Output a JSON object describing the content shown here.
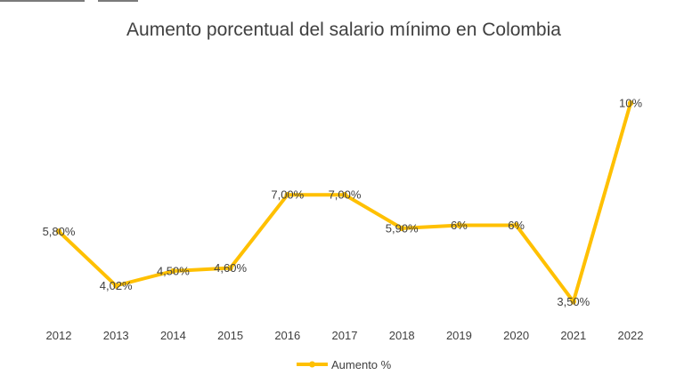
{
  "chart_data": {
    "type": "line",
    "title": "Aumento porcentual del salario mínimo en Colombia",
    "xlabel": "",
    "ylabel": "",
    "categories": [
      "2012",
      "2013",
      "2014",
      "2015",
      "2016",
      "2017",
      "2018",
      "2019",
      "2020",
      "2021",
      "2022"
    ],
    "series": [
      {
        "name": "Aumento %",
        "values": [
          5.8,
          4.02,
          4.5,
          4.6,
          7.0,
          7.0,
          5.9,
          6.0,
          6.0,
          3.5,
          10.0
        ],
        "labels": [
          "5,80%",
          "4,02%",
          "4,50%",
          "4,60%",
          "7,00%",
          "7,00%",
          "5,90%",
          "6%",
          "6%",
          "3,50%",
          "10%"
        ],
        "color": "#FFC000"
      }
    ],
    "ylim": [
      0,
      12
    ],
    "grid": false,
    "legend_position": "bottom"
  }
}
